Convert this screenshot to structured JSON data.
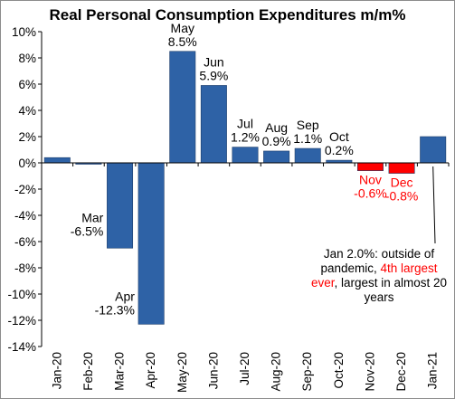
{
  "chart_data": {
    "type": "bar",
    "title": "Real Personal Consumption Expenditures m/m%",
    "categories": [
      "Jan-20",
      "Feb-20",
      "Mar-20",
      "Apr-20",
      "May-20",
      "Jun-20",
      "Jul-20",
      "Aug-20",
      "Sep-20",
      "Oct-20",
      "Nov-20",
      "Dec-20",
      "Jan-21"
    ],
    "values": [
      0.4,
      -0.1,
      -6.5,
      -12.3,
      8.5,
      5.9,
      1.2,
      0.9,
      1.1,
      0.2,
      -0.6,
      -0.8,
      2.0
    ],
    "ylim": [
      -14,
      10
    ],
    "ytick_step": 2,
    "y_unit": "%",
    "grid": false,
    "colors": {
      "bar": "#2e62a6",
      "highlight_bar": "#ff0000",
      "highlight_text": "#ff0000"
    },
    "highlight_categories": [
      "Nov-20",
      "Dec-20"
    ],
    "data_labels": [
      {
        "category": "Mar-20",
        "month": "Mar",
        "value": "-6.5%",
        "color": "#000000"
      },
      {
        "category": "Apr-20",
        "month": "Apr",
        "value": "-12.3%",
        "color": "#000000"
      },
      {
        "category": "May-20",
        "month": "May",
        "value": "8.5%",
        "color": "#000000"
      },
      {
        "category": "Jun-20",
        "month": "Jun",
        "value": "5.9%",
        "color": "#000000"
      },
      {
        "category": "Jul-20",
        "month": "Jul",
        "value": "1.2%",
        "color": "#000000"
      },
      {
        "category": "Aug-20",
        "month": "Aug",
        "value": "0.9%",
        "color": "#000000"
      },
      {
        "category": "Sep-20",
        "month": "Sep",
        "value": "1.1%",
        "color": "#000000"
      },
      {
        "category": "Oct-20",
        "month": "Oct",
        "value": "0.2%",
        "color": "#000000"
      },
      {
        "category": "Nov-20",
        "month": "Nov",
        "value": "-0.6%",
        "color": "#ff0000"
      },
      {
        "category": "Dec-20",
        "month": "Dec",
        "value": "-0.8%",
        "color": "#ff0000"
      }
    ],
    "annotation": {
      "target_category": "Jan-21",
      "text_before": "Jan 2.0%: outside of pandemic, ",
      "highlight": "4th largest ever",
      "text_after": ", largest in almost 20 years"
    }
  }
}
